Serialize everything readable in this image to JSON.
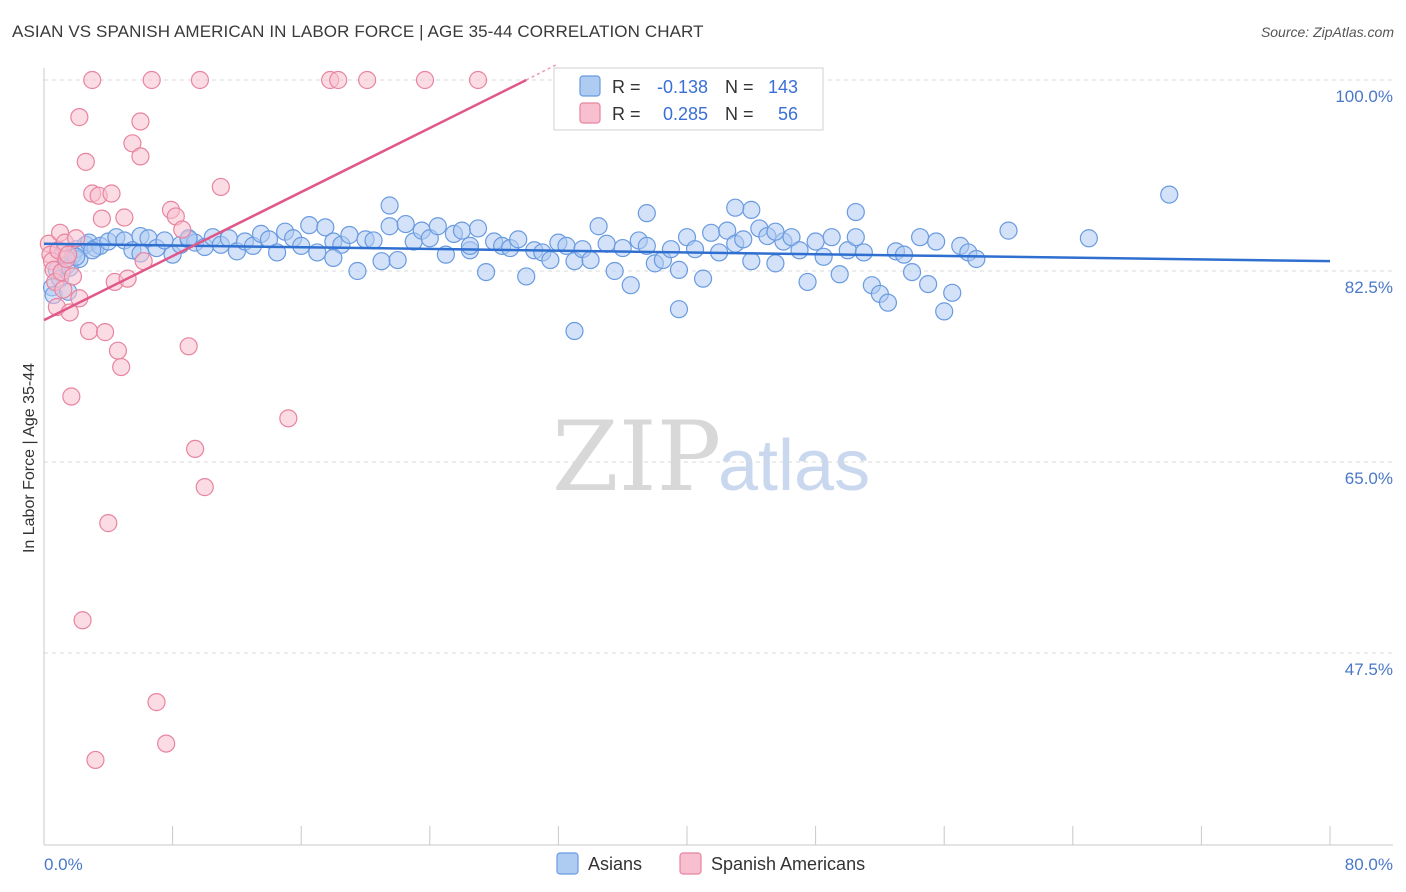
{
  "title": "ASIAN VS SPANISH AMERICAN IN LABOR FORCE | AGE 35-44 CORRELATION CHART",
  "source": "Source: ZipAtlas.com",
  "watermark": {
    "zip": "ZIP",
    "atlas": "atlas"
  },
  "colors": {
    "asian_fill": "#aecbf2",
    "asian_stroke": "#6a9be0",
    "asian_line": "#2f6fd0",
    "spanish_fill": "#f7bfd0",
    "spanish_stroke": "#e8849f",
    "spanish_line": "#e0588a",
    "grid": "#d9d9d9",
    "axis_text": "#4a78c8"
  },
  "legend": {
    "rows": [
      {
        "r_label": "R =",
        "r_value": "-0.138",
        "n_label": "N =",
        "n_value": "143"
      },
      {
        "r_label": "R =",
        "r_value": "0.285",
        "n_label": "N =",
        "n_value": "56"
      }
    ]
  },
  "bottom_legend": {
    "asians": "Asians",
    "spanish": "Spanish Americans"
  },
  "chart_data": {
    "type": "scatter",
    "xlabel": "",
    "ylabel": "In Labor Force | Age 35-44",
    "xlim": [
      0,
      80
    ],
    "ylim": [
      30,
      102
    ],
    "x_tick_labels": [
      "0.0%",
      "80.0%"
    ],
    "y_ticks": [
      47.5,
      65.0,
      82.5,
      100.0
    ],
    "y_tick_labels": [
      "47.5%",
      "65.0%",
      "82.5%",
      "100.0%"
    ],
    "grid": true,
    "series": [
      {
        "name": "Asians",
        "r": -0.138,
        "n": 143,
        "trend": {
          "x": [
            0,
            80
          ],
          "y": [
            85.0,
            83.4
          ]
        },
        "points": [
          [
            0.5,
            81.0
          ],
          [
            0.6,
            80.3
          ],
          [
            0.8,
            82.6
          ],
          [
            1.0,
            81.8
          ],
          [
            1.2,
            84.2
          ],
          [
            1.4,
            83.0
          ],
          [
            1.6,
            82.8
          ],
          [
            1.8,
            84.0
          ],
          [
            2.0,
            84.5
          ],
          [
            2.2,
            83.6
          ],
          [
            2.6,
            84.9
          ],
          [
            2.8,
            85.1
          ],
          [
            3.2,
            84.6
          ],
          [
            3.5,
            84.8
          ],
          [
            4.0,
            85.2
          ],
          [
            4.5,
            85.6
          ],
          [
            5.0,
            85.3
          ],
          [
            5.5,
            84.4
          ],
          [
            6.0,
            85.7
          ],
          [
            6.5,
            85.5
          ],
          [
            7.0,
            84.6
          ],
          [
            7.5,
            85.3
          ],
          [
            8.0,
            84.0
          ],
          [
            8.5,
            84.9
          ],
          [
            9.0,
            85.4
          ],
          [
            9.4,
            85.1
          ],
          [
            10.0,
            84.7
          ],
          [
            10.5,
            85.6
          ],
          [
            11.0,
            84.9
          ],
          [
            11.5,
            85.5
          ],
          [
            12.0,
            84.3
          ],
          [
            12.5,
            85.2
          ],
          [
            13.0,
            84.8
          ],
          [
            13.5,
            85.9
          ],
          [
            14.0,
            85.4
          ],
          [
            14.5,
            84.2
          ],
          [
            15.0,
            86.1
          ],
          [
            15.5,
            85.5
          ],
          [
            16.0,
            84.8
          ],
          [
            16.5,
            86.7
          ],
          [
            17.0,
            84.2
          ],
          [
            17.5,
            86.5
          ],
          [
            18.0,
            85.2
          ],
          [
            18.5,
            84.9
          ],
          [
            19.0,
            85.8
          ],
          [
            19.5,
            82.5
          ],
          [
            20.0,
            85.4
          ],
          [
            20.5,
            85.3
          ],
          [
            21.0,
            83.4
          ],
          [
            21.5,
            86.6
          ],
          [
            22.0,
            83.5
          ],
          [
            22.5,
            86.8
          ],
          [
            23.0,
            85.2
          ],
          [
            23.5,
            86.2
          ],
          [
            24.0,
            85.5
          ],
          [
            24.5,
            86.6
          ],
          [
            25.0,
            84.0
          ],
          [
            25.5,
            85.9
          ],
          [
            26.0,
            86.2
          ],
          [
            26.5,
            84.4
          ],
          [
            27.0,
            86.4
          ],
          [
            27.5,
            82.4
          ],
          [
            28.0,
            85.2
          ],
          [
            28.5,
            84.8
          ],
          [
            29.0,
            84.6
          ],
          [
            29.5,
            85.4
          ],
          [
            30.0,
            82.0
          ],
          [
            30.5,
            84.4
          ],
          [
            31.0,
            84.2
          ],
          [
            31.5,
            83.5
          ],
          [
            32.0,
            85.1
          ],
          [
            32.5,
            84.8
          ],
          [
            33.0,
            83.4
          ],
          [
            33.5,
            84.5
          ],
          [
            34.0,
            83.5
          ],
          [
            34.5,
            86.6
          ],
          [
            35.0,
            85.0
          ],
          [
            35.5,
            82.5
          ],
          [
            36.0,
            84.6
          ],
          [
            36.5,
            81.2
          ],
          [
            37.0,
            85.3
          ],
          [
            37.5,
            84.8
          ],
          [
            38.0,
            83.2
          ],
          [
            38.5,
            83.5
          ],
          [
            39.0,
            84.5
          ],
          [
            39.5,
            82.6
          ],
          [
            40.0,
            85.6
          ],
          [
            40.5,
            84.5
          ],
          [
            41.0,
            81.8
          ],
          [
            41.5,
            86.0
          ],
          [
            42.0,
            84.2
          ],
          [
            42.5,
            86.2
          ],
          [
            43.0,
            85.0
          ],
          [
            43.5,
            85.4
          ],
          [
            44.0,
            83.4
          ],
          [
            44.5,
            86.4
          ],
          [
            45.0,
            85.7
          ],
          [
            45.5,
            83.2
          ],
          [
            46.0,
            85.2
          ],
          [
            46.5,
            85.6
          ],
          [
            47.0,
            84.4
          ],
          [
            47.5,
            81.5
          ],
          [
            48.0,
            85.2
          ],
          [
            48.5,
            83.8
          ],
          [
            49.0,
            85.6
          ],
          [
            49.5,
            82.2
          ],
          [
            50.0,
            84.4
          ],
          [
            50.5,
            85.6
          ],
          [
            51.0,
            84.2
          ],
          [
            51.5,
            81.2
          ],
          [
            52.0,
            80.4
          ],
          [
            52.5,
            79.6
          ],
          [
            53.0,
            84.3
          ],
          [
            53.5,
            84.0
          ],
          [
            54.0,
            82.4
          ],
          [
            54.5,
            85.6
          ],
          [
            55.0,
            81.3
          ],
          [
            55.5,
            85.2
          ],
          [
            56.0,
            78.8
          ],
          [
            56.5,
            80.5
          ],
          [
            57.0,
            84.8
          ],
          [
            57.5,
            84.2
          ],
          [
            58.0,
            83.6
          ],
          [
            60.0,
            86.2
          ],
          [
            65.0,
            85.5
          ],
          [
            70.0,
            89.5
          ],
          [
            39.5,
            79.0
          ],
          [
            33.0,
            77.0
          ],
          [
            44.0,
            88.1
          ],
          [
            43.0,
            88.3
          ],
          [
            37.5,
            87.8
          ],
          [
            21.5,
            88.5
          ],
          [
            50.5,
            87.9
          ],
          [
            45.5,
            86.1
          ],
          [
            26.5,
            84.8
          ],
          [
            9.0,
            85.5
          ],
          [
            2.0,
            83.8
          ],
          [
            1.5,
            80.6
          ],
          [
            3.0,
            84.4
          ],
          [
            6.0,
            84.1
          ],
          [
            18.0,
            83.7
          ]
        ]
      },
      {
        "name": "Spanish Americans",
        "r": 0.285,
        "n": 56,
        "trend": {
          "x": [
            0,
            30
          ],
          "y": [
            78.0,
            100.0
          ]
        },
        "points": [
          [
            0.3,
            85.0
          ],
          [
            0.4,
            84.0
          ],
          [
            0.5,
            83.4
          ],
          [
            0.6,
            82.6
          ],
          [
            0.7,
            81.5
          ],
          [
            0.8,
            79.2
          ],
          [
            0.9,
            84.4
          ],
          [
            1.0,
            86.0
          ],
          [
            1.1,
            82.4
          ],
          [
            1.2,
            80.8
          ],
          [
            1.3,
            85.1
          ],
          [
            1.4,
            83.6
          ],
          [
            1.5,
            84.0
          ],
          [
            1.6,
            78.7
          ],
          [
            1.7,
            71.0
          ],
          [
            1.8,
            82.0
          ],
          [
            2.0,
            85.5
          ],
          [
            2.2,
            80.0
          ],
          [
            2.4,
            50.5
          ],
          [
            2.6,
            92.5
          ],
          [
            2.8,
            77.0
          ],
          [
            3.0,
            89.6
          ],
          [
            3.2,
            37.7
          ],
          [
            3.4,
            89.4
          ],
          [
            3.6,
            87.3
          ],
          [
            3.8,
            76.9
          ],
          [
            4.0,
            59.4
          ],
          [
            4.2,
            89.6
          ],
          [
            4.4,
            81.5
          ],
          [
            4.6,
            75.2
          ],
          [
            4.8,
            73.7
          ],
          [
            5.0,
            87.4
          ],
          [
            5.2,
            81.8
          ],
          [
            5.5,
            94.2
          ],
          [
            6.0,
            96.2
          ],
          [
            6.2,
            83.4
          ],
          [
            7.0,
            43.0
          ],
          [
            7.6,
            39.2
          ],
          [
            7.9,
            88.1
          ],
          [
            8.2,
            87.5
          ],
          [
            8.6,
            86.3
          ],
          [
            9.0,
            75.6
          ],
          [
            9.4,
            66.2
          ],
          [
            10.0,
            62.7
          ],
          [
            11.0,
            90.2
          ],
          [
            3.0,
            100.0
          ],
          [
            6.7,
            100.0
          ],
          [
            9.7,
            100.0
          ],
          [
            17.8,
            100.0
          ],
          [
            18.3,
            100.0
          ],
          [
            20.1,
            100.0
          ],
          [
            23.7,
            100.0
          ],
          [
            27.0,
            100.0
          ],
          [
            2.2,
            96.6
          ],
          [
            15.2,
            69.0
          ],
          [
            6.0,
            93.0
          ]
        ]
      }
    ]
  }
}
